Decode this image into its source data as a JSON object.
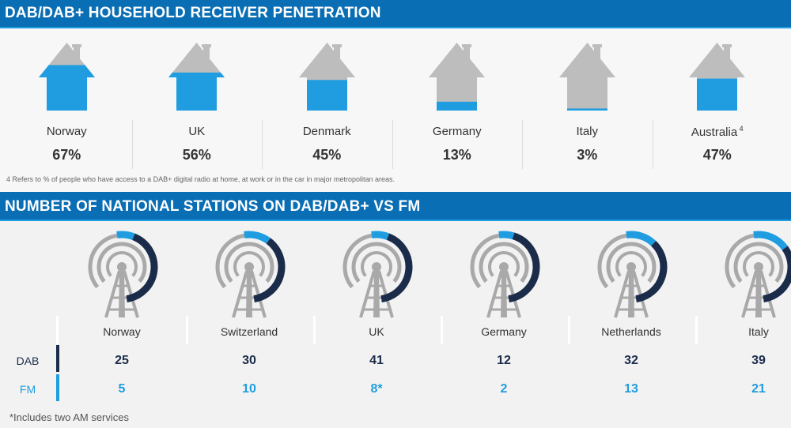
{
  "section1": {
    "title": "DAB/DAB+ HOUSEHOLD RECEIVER PENETRATION",
    "footnote": "4 Refers to % of people who have access to a DAB+ digital radio at home, at work or in the car in major metropolitan areas.",
    "countries": [
      {
        "name": "Norway",
        "sup": "",
        "value": 67,
        "label": "67%"
      },
      {
        "name": "UK",
        "sup": "",
        "value": 56,
        "label": "56%"
      },
      {
        "name": "Denmark",
        "sup": "",
        "value": 45,
        "label": "45%"
      },
      {
        "name": "Germany",
        "sup": "",
        "value": 13,
        "label": "13%"
      },
      {
        "name": "Italy",
        "sup": "",
        "value": 3,
        "label": "3%"
      },
      {
        "name": "Australia",
        "sup": "4",
        "value": 47,
        "label": "47%"
      }
    ]
  },
  "section2": {
    "title": "NUMBER OF NATIONAL STATIONS ON DAB/DAB+ VS FM",
    "row_labels": {
      "dab": "DAB",
      "fm": "FM"
    },
    "footnote": "*Includes two AM services",
    "countries": [
      {
        "name": "Norway",
        "dab": "25",
        "fm": "5"
      },
      {
        "name": "Switzerland",
        "dab": "30",
        "fm": "10"
      },
      {
        "name": "UK",
        "dab": "41",
        "fm": "8*"
      },
      {
        "name": "Germany",
        "dab": "12",
        "fm": "2"
      },
      {
        "name": "Netherlands",
        "dab": "32",
        "fm": "13"
      },
      {
        "name": "Italy",
        "dab": "39",
        "fm": "21"
      }
    ]
  },
  "chart_data": [
    {
      "type": "bar",
      "title": "DAB/DAB+ HOUSEHOLD RECEIVER PENETRATION",
      "categories": [
        "Norway",
        "UK",
        "Denmark",
        "Germany",
        "Italy",
        "Australia"
      ],
      "values": [
        67,
        56,
        45,
        13,
        3,
        47
      ],
      "ylabel": "%",
      "ylim": [
        0,
        100
      ]
    },
    {
      "type": "pie",
      "title": "NUMBER OF NATIONAL STATIONS ON DAB/DAB+ VS FM",
      "categories": [
        "Norway",
        "Switzerland",
        "UK",
        "Germany",
        "Netherlands",
        "Italy"
      ],
      "series": [
        {
          "name": "DAB",
          "values": [
            25,
            30,
            41,
            12,
            32,
            39
          ]
        },
        {
          "name": "FM",
          "values": [
            5,
            10,
            8,
            2,
            13,
            21
          ]
        }
      ]
    }
  ],
  "colors": {
    "banner": "#0a6eb4",
    "accent_light": "#1f9de0",
    "dab_dark": "#1b2c4a",
    "house_gray": "#bdbdbd",
    "tower_gray": "#a9a9a9"
  }
}
